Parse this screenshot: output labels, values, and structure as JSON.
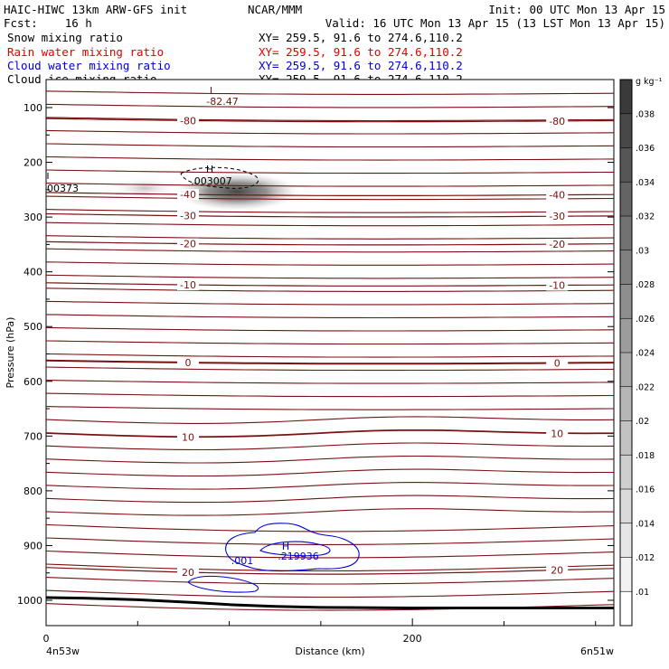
{
  "header": {
    "left1": "HAIC-HIWC 13km ARW-GFS init",
    "center1": "NCAR/MMM",
    "right1": "Init: 00 UTC Mon 13 Apr 15",
    "fcst": "Fcst:    16 h",
    "valid": "Valid: 16 UTC Mon 13 Apr 15 (13 LST Mon 13 Apr 15)"
  },
  "fields": [
    {
      "name": "Snow mixing ratio",
      "xy": "XY= 259.5, 91.6 to 274.6,110.2",
      "color": "#000000"
    },
    {
      "name": "Rain water mixing ratio",
      "xy": "XY= 259.5, 91.6 to 274.6,110.2",
      "color": "#e00000"
    },
    {
      "name": "Cloud water mixing ratio",
      "xy": "XY= 259.5, 91.6 to 274.6,110.2",
      "color": "#0000d0"
    },
    {
      "name": "Cloud ice mixing ratio",
      "xy": "XY= 259.5, 91.6 to 274.6,110.2",
      "color": "#000000"
    }
  ],
  "chart_data": {
    "type": "cross-section",
    "xlabel": "Distance (km)",
    "ylabel": "Pressure (hPa)",
    "xlim": [
      0,
      310
    ],
    "ylim": [
      1050,
      60
    ],
    "xticks": [
      0,
      200
    ],
    "yticks": [
      100,
      200,
      300,
      400,
      500,
      600,
      700,
      800,
      900,
      1000
    ],
    "left_endpoint": "4n53w",
    "right_endpoint": "6n51w",
    "colorbar": {
      "unit": "g kg⁻¹",
      "levels": [
        ".01",
        ".012",
        ".014",
        ".016",
        ".018",
        ".02",
        ".022",
        ".024",
        ".026",
        ".028",
        ".03",
        ".032",
        ".034",
        ".036",
        ".038"
      ],
      "colors": [
        "#ffffff",
        "#f2f2f2",
        "#e6e6e6",
        "#dadada",
        "#cecece",
        "#c2c2c2",
        "#b6b6b6",
        "#aaaaaa",
        "#9c9c9c",
        "#8e8e8e",
        "#808080",
        "#727272",
        "#646464",
        "#565656",
        "#484848",
        "#3a3a3a"
      ]
    },
    "temperature_contours": {
      "color": "#7a1010",
      "interval_C": 5,
      "labeled_values": [
        {
          "value": "-80",
          "pressure": 120
        },
        {
          "value": "-40",
          "pressure": 255
        },
        {
          "value": "-30",
          "pressure": 294
        },
        {
          "value": "-20",
          "pressure": 345
        },
        {
          "value": "-10",
          "pressure": 420
        },
        {
          "value": "0",
          "pressure": 562
        },
        {
          "value": "10",
          "pressure": 695
        },
        {
          "value": "20",
          "pressure": 940
        }
      ],
      "low_label": "L",
      "low_value": "-82.47"
    },
    "cloud_ice": {
      "max_label": "H",
      "max_value": ".003007",
      "edge_value": "00373"
    },
    "cloud_water": {
      "color": "#0000d0",
      "max_label": "H",
      "max_value": ".219936",
      "contour_value": ".001"
    },
    "terrain": {
      "distance_km": [
        0,
        20,
        50,
        80,
        100,
        125,
        150,
        200,
        250,
        310
      ],
      "pressure_hPa": [
        995,
        996,
        999,
        1004,
        1008,
        1011,
        1013,
        1014,
        1014,
        1014
      ]
    }
  }
}
